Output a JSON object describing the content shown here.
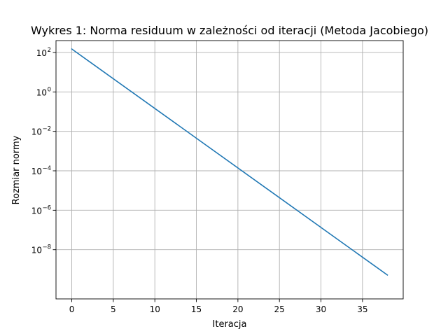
{
  "chart_data": {
    "type": "line",
    "title": "Wykres 1: Norma residuum w zależności od iteracji (Metoda Jacobiego)",
    "xlabel": "Iteracja",
    "ylabel": "Rozmiar normy",
    "xlim": [
      -1.9,
      39.9
    ],
    "ylim": [
      3.2e-11,
      400
    ],
    "yscale": "log",
    "grid": true,
    "x_ticks": [
      {
        "value": 0,
        "label": "0"
      },
      {
        "value": 5,
        "label": "5"
      },
      {
        "value": 10,
        "label": "10"
      },
      {
        "value": 15,
        "label": "15"
      },
      {
        "value": 20,
        "label": "20"
      },
      {
        "value": 25,
        "label": "25"
      },
      {
        "value": 30,
        "label": "30"
      },
      {
        "value": 35,
        "label": "35"
      }
    ],
    "y_ticks": [
      {
        "value": 100,
        "base": "10",
        "exp": "2"
      },
      {
        "value": 1,
        "base": "10",
        "exp": "0"
      },
      {
        "value": 0.01,
        "base": "10",
        "exp": "−2"
      },
      {
        "value": 0.0001,
        "base": "10",
        "exp": "−4"
      },
      {
        "value": 1e-06,
        "base": "10",
        "exp": "−6"
      },
      {
        "value": 1e-08,
        "base": "10",
        "exp": "−8"
      }
    ],
    "series": [
      {
        "color": "#1f77b4",
        "x": [
          0,
          38
        ],
        "y": [
          150,
          5.2e-10
        ]
      }
    ]
  }
}
